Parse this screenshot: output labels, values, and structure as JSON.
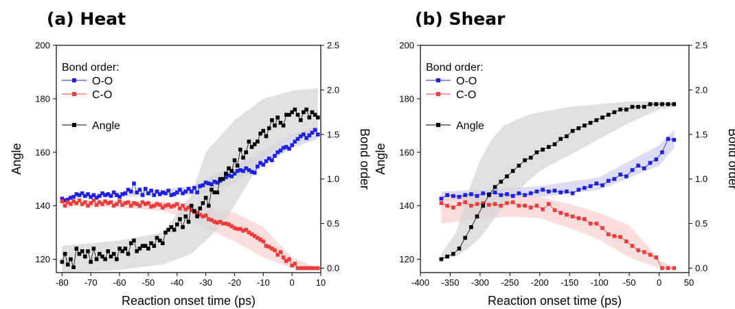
{
  "colors": {
    "oo": "#1f1fe6",
    "co": "#ee3b3b",
    "angle": "#000000",
    "band_oo": "#c9c9ef",
    "band_co": "#f8cccc",
    "band_angle": "#d6d6d6"
  },
  "legend": {
    "title": "Bond order:",
    "oo": "O-O",
    "co": "C-O",
    "angle": "Angle"
  },
  "chart_data": [
    {
      "type": "line",
      "title": "(a) Heat",
      "xlabel": "Reaction onset time (ps)",
      "ylabel": "Angle",
      "y2label": "Bond order",
      "xlim": [
        -82,
        10
      ],
      "ylim": [
        115,
        200
      ],
      "y2lim": [
        -0.05,
        2.5
      ],
      "xticks": [
        -80,
        -70,
        -60,
        -50,
        -40,
        -30,
        -20,
        -10,
        0,
        10
      ],
      "yticks": [
        120,
        140,
        160,
        180,
        200
      ],
      "y2ticks": [
        "0.0",
        "0.5",
        "1.0",
        "1.5",
        "2.0",
        "2.5"
      ],
      "grid": false,
      "legend_position": "top-left",
      "series": [
        {
          "name": "O-O",
          "axis": "right",
          "x": [
            -80,
            -79,
            -78,
            -77,
            -76,
            -75,
            -74,
            -73,
            -72,
            -71,
            -70,
            -69,
            -68,
            -67,
            -66,
            -65,
            -64,
            -63,
            -62,
            -61,
            -60,
            -59,
            -58,
            -57,
            -56,
            -55,
            -54,
            -53,
            -52,
            -51,
            -50,
            -49,
            -48,
            -47,
            -46,
            -45,
            -44,
            -43,
            -42,
            -41,
            -40,
            -39,
            -38,
            -37,
            -36,
            -35,
            -34,
            -33,
            -32,
            -31,
            -30,
            -29,
            -28,
            -27,
            -26,
            -25,
            -24,
            -23,
            -22,
            -21,
            -20,
            -19,
            -18,
            -17,
            -16,
            -15,
            -14,
            -13,
            -12,
            -11,
            -10,
            -9,
            -8,
            -7,
            -6,
            -5,
            -4,
            -3,
            -2,
            -1,
            0,
            1,
            2,
            3,
            4,
            5,
            6,
            7,
            8,
            9
          ],
          "values": [
            0.78,
            0.76,
            0.77,
            0.79,
            0.8,
            0.83,
            0.82,
            0.84,
            0.81,
            0.83,
            0.8,
            0.82,
            0.79,
            0.81,
            0.84,
            0.82,
            0.83,
            0.81,
            0.85,
            0.82,
            0.8,
            0.83,
            0.84,
            0.88,
            0.86,
            0.95,
            0.85,
            0.88,
            0.82,
            0.89,
            0.84,
            0.87,
            0.82,
            0.86,
            0.83,
            0.85,
            0.84,
            0.87,
            0.82,
            0.83,
            0.85,
            0.88,
            0.84,
            0.86,
            0.89,
            0.86,
            0.9,
            0.85,
            0.92,
            0.93,
            0.96,
            0.95,
            0.94,
            0.97,
            0.96,
            0.98,
            1.0,
            1.02,
            1.04,
            1.03,
            1.06,
            1.09,
            1.1,
            1.09,
            1.12,
            1.1,
            1.08,
            1.07,
            1.14,
            1.18,
            1.16,
            1.2,
            1.23,
            1.21,
            1.26,
            1.3,
            1.32,
            1.35,
            1.36,
            1.34,
            1.38,
            1.42,
            1.45,
            1.48,
            1.5,
            1.46,
            1.49,
            1.52,
            1.55,
            1.5
          ]
        },
        {
          "name": "C-O",
          "axis": "right",
          "x": [
            -80,
            -79,
            -78,
            -77,
            -76,
            -75,
            -74,
            -73,
            -72,
            -71,
            -70,
            -69,
            -68,
            -67,
            -66,
            -65,
            -64,
            -63,
            -62,
            -61,
            -60,
            -59,
            -58,
            -57,
            -56,
            -55,
            -54,
            -53,
            -52,
            -51,
            -50,
            -49,
            -48,
            -47,
            -46,
            -45,
            -44,
            -43,
            -42,
            -41,
            -40,
            -39,
            -38,
            -37,
            -36,
            -35,
            -34,
            -33,
            -32,
            -31,
            -30,
            -29,
            -28,
            -27,
            -26,
            -25,
            -24,
            -23,
            -22,
            -21,
            -20,
            -19,
            -18,
            -17,
            -16,
            -15,
            -14,
            -13,
            -12,
            -11,
            -10,
            -9,
            -8,
            -7,
            -6,
            -5,
            -4,
            -3,
            -2,
            -1,
            0,
            1,
            2,
            3,
            4,
            5,
            6,
            7,
            8,
            9
          ],
          "values": [
            0.75,
            0.7,
            0.74,
            0.72,
            0.75,
            0.73,
            0.76,
            0.72,
            0.74,
            0.7,
            0.73,
            0.76,
            0.71,
            0.74,
            0.72,
            0.75,
            0.73,
            0.74,
            0.7,
            0.72,
            0.75,
            0.71,
            0.73,
            0.74,
            0.7,
            0.73,
            0.72,
            0.7,
            0.74,
            0.72,
            0.73,
            0.69,
            0.7,
            0.72,
            0.71,
            0.68,
            0.7,
            0.71,
            0.69,
            0.7,
            0.72,
            0.67,
            0.7,
            0.66,
            0.68,
            0.65,
            0.63,
            0.62,
            0.6,
            0.58,
            0.59,
            0.55,
            0.54,
            0.52,
            0.51,
            0.52,
            0.5,
            0.5,
            0.49,
            0.47,
            0.45,
            0.44,
            0.44,
            0.42,
            0.43,
            0.4,
            0.38,
            0.36,
            0.34,
            0.32,
            0.3,
            0.25,
            0.24,
            0.22,
            0.2,
            0.15,
            0.18,
            0.12,
            0.08,
            0.1,
            0.03,
            0.05,
            0.0,
            0.0,
            0.0,
            0.0,
            0.0,
            0.0,
            0.0,
            0.0
          ]
        },
        {
          "name": "Angle",
          "axis": "left",
          "x": [
            -80,
            -79,
            -78,
            -77,
            -76,
            -75,
            -74,
            -73,
            -72,
            -71,
            -70,
            -69,
            -68,
            -67,
            -66,
            -65,
            -64,
            -63,
            -62,
            -61,
            -60,
            -59,
            -58,
            -57,
            -56,
            -55,
            -54,
            -53,
            -52,
            -51,
            -50,
            -49,
            -48,
            -47,
            -46,
            -45,
            -44,
            -43,
            -42,
            -41,
            -40,
            -39,
            -38,
            -37,
            -36,
            -35,
            -34,
            -33,
            -32,
            -31,
            -30,
            -29,
            -28,
            -27,
            -26,
            -25,
            -24,
            -23,
            -22,
            -21,
            -20,
            -19,
            -18,
            -17,
            -16,
            -15,
            -14,
            -13,
            -12,
            -11,
            -10,
            -9,
            -8,
            -7,
            -6,
            -5,
            -4,
            -3,
            -2,
            -1,
            0,
            1,
            2,
            3,
            4,
            5,
            6,
            7,
            8,
            9
          ],
          "values": [
            119,
            122,
            118,
            120,
            117,
            124,
            122,
            123,
            121,
            123,
            119,
            124,
            120,
            122,
            121,
            120,
            123,
            121,
            122,
            120,
            124,
            123,
            124,
            122,
            126,
            127,
            123,
            124,
            125,
            125,
            124,
            126,
            125,
            128,
            127,
            126,
            130,
            131,
            132,
            131,
            133,
            135,
            132,
            136,
            134,
            140,
            138,
            136,
            139,
            141,
            143,
            140,
            146,
            145,
            145,
            150,
            150,
            152,
            154,
            153,
            157,
            155,
            161,
            158,
            160,
            164,
            162,
            163,
            164,
            167,
            168,
            166,
            169,
            172,
            170,
            173,
            171,
            170,
            174,
            174,
            175,
            176,
            174,
            172,
            175,
            176,
            173,
            175,
            174,
            173
          ]
        }
      ],
      "bands": [
        {
          "series": "O-O",
          "x": [
            -80,
            -60,
            -45,
            -35,
            -30,
            -20,
            -10,
            0,
            9
          ],
          "lower": [
            0.78,
            0.8,
            0.82,
            0.82,
            0.85,
            0.95,
            1.15,
            1.35,
            1.45
          ],
          "upper": [
            0.78,
            0.86,
            0.88,
            0.92,
            1.0,
            1.15,
            1.32,
            1.5,
            1.6
          ]
        },
        {
          "series": "C-O",
          "x": [
            -80,
            -60,
            -45,
            -35,
            -30,
            -20,
            -10,
            0,
            9
          ],
          "lower": [
            0.7,
            0.68,
            0.64,
            0.55,
            0.45,
            0.3,
            0.12,
            0.0,
            0.0
          ],
          "upper": [
            0.75,
            0.76,
            0.75,
            0.72,
            0.68,
            0.62,
            0.46,
            0.12,
            0.0
          ]
        },
        {
          "series": "Angle",
          "x": [
            -80,
            -60,
            -45,
            -35,
            -30,
            -25,
            -20,
            -10,
            0,
            9
          ],
          "lower": [
            115,
            116,
            118,
            122,
            127,
            132,
            140,
            158,
            166,
            168
          ],
          "upper": [
            125,
            127,
            130,
            144,
            160,
            166,
            172,
            180,
            183,
            184
          ]
        }
      ]
    },
    {
      "type": "line",
      "title": "(b) Shear",
      "xlabel": "Reaction onset time (ps)",
      "ylabel": "Angle",
      "y2label": "Bond order",
      "xlim": [
        -400,
        50
      ],
      "ylim": [
        115,
        200
      ],
      "y2lim": [
        -0.05,
        2.5
      ],
      "xticks": [
        -400,
        -350,
        -300,
        -250,
        -200,
        -150,
        -100,
        -50,
        0,
        50
      ],
      "yticks": [
        120,
        140,
        160,
        180,
        200
      ],
      "y2ticks": [
        "0.0",
        "0.5",
        "1.0",
        "1.5",
        "2.0",
        "2.5"
      ],
      "grid": false,
      "legend_position": "top-left",
      "series": [
        {
          "name": "O-O",
          "axis": "right",
          "x": [
            -365,
            -355,
            -345,
            -335,
            -325,
            -315,
            -305,
            -295,
            -285,
            -275,
            -265,
            -255,
            -245,
            -235,
            -225,
            -215,
            -205,
            -195,
            -185,
            -175,
            -165,
            -155,
            -145,
            -135,
            -125,
            -115,
            -105,
            -95,
            -85,
            -75,
            -65,
            -55,
            -45,
            -35,
            -25,
            -15,
            -5,
            5,
            15,
            25
          ],
          "values": [
            0.78,
            0.82,
            0.81,
            0.8,
            0.82,
            0.83,
            0.81,
            0.84,
            0.83,
            0.85,
            0.82,
            0.83,
            0.81,
            0.84,
            0.82,
            0.84,
            0.86,
            0.88,
            0.86,
            0.87,
            0.85,
            0.86,
            0.84,
            0.88,
            0.9,
            0.92,
            0.95,
            0.93,
            0.98,
            1.0,
            1.05,
            1.03,
            1.1,
            1.15,
            1.12,
            1.18,
            1.22,
            1.3,
            1.45,
            1.44
          ]
        },
        {
          "name": "C-O",
          "axis": "right",
          "x": [
            -365,
            -355,
            -345,
            -335,
            -325,
            -315,
            -305,
            -295,
            -285,
            -275,
            -265,
            -255,
            -245,
            -235,
            -225,
            -215,
            -205,
            -195,
            -185,
            -175,
            -165,
            -155,
            -145,
            -135,
            -125,
            -115,
            -105,
            -95,
            -85,
            -75,
            -65,
            -55,
            -45,
            -35,
            -25,
            -15,
            -5,
            5,
            15,
            25
          ],
          "values": [
            0.73,
            0.7,
            0.68,
            0.72,
            0.74,
            0.7,
            0.72,
            0.73,
            0.71,
            0.72,
            0.7,
            0.73,
            0.74,
            0.7,
            0.7,
            0.68,
            0.7,
            0.66,
            0.72,
            0.65,
            0.62,
            0.6,
            0.58,
            0.56,
            0.55,
            0.5,
            0.5,
            0.45,
            0.38,
            0.36,
            0.35,
            0.3,
            0.25,
            0.2,
            0.18,
            0.15,
            0.12,
            0.0,
            0.0,
            0.0
          ]
        },
        {
          "name": "Angle",
          "axis": "left",
          "x": [
            -365,
            -355,
            -345,
            -335,
            -325,
            -315,
            -305,
            -295,
            -285,
            -275,
            -265,
            -255,
            -245,
            -235,
            -225,
            -215,
            -205,
            -195,
            -185,
            -175,
            -165,
            -155,
            -145,
            -135,
            -125,
            -115,
            -105,
            -95,
            -85,
            -75,
            -65,
            -55,
            -45,
            -35,
            -25,
            -15,
            -5,
            5,
            15,
            25
          ],
          "values": [
            120,
            121,
            122,
            124,
            128,
            132,
            136,
            140,
            144,
            147,
            149,
            151,
            153,
            155,
            157,
            158,
            160,
            161,
            162,
            163,
            165,
            166,
            168,
            169,
            170,
            171,
            172,
            173,
            174,
            175,
            176,
            176,
            177,
            177,
            177,
            178,
            178,
            178,
            178,
            178
          ]
        }
      ],
      "bands": [
        {
          "series": "O-O",
          "x": [
            -365,
            -300,
            -200,
            -100,
            0,
            25
          ],
          "lower": [
            0.76,
            0.76,
            0.8,
            0.88,
            1.15,
            1.35
          ],
          "upper": [
            0.86,
            0.88,
            0.92,
            1.02,
            1.38,
            1.55
          ]
        },
        {
          "series": "C-O",
          "x": [
            -365,
            -300,
            -250,
            -200,
            -150,
            -100,
            -50,
            0,
            25
          ],
          "lower": [
            0.5,
            0.55,
            0.58,
            0.56,
            0.45,
            0.32,
            0.12,
            0.0,
            0.0
          ],
          "upper": [
            0.82,
            0.84,
            0.82,
            0.8,
            0.72,
            0.62,
            0.48,
            0.1,
            0.0
          ]
        },
        {
          "series": "Angle",
          "x": [
            -365,
            -340,
            -320,
            -300,
            -280,
            -260,
            -240,
            -220,
            -200,
            -150,
            -100,
            -50,
            0,
            25
          ],
          "lower": [
            120,
            121,
            124,
            128,
            134,
            140,
            145,
            149,
            153,
            159,
            165,
            171,
            176,
            177
          ],
          "upper": [
            122,
            130,
            145,
            157,
            165,
            170,
            172,
            174,
            175,
            177,
            178,
            179,
            179,
            179
          ]
        }
      ]
    }
  ]
}
